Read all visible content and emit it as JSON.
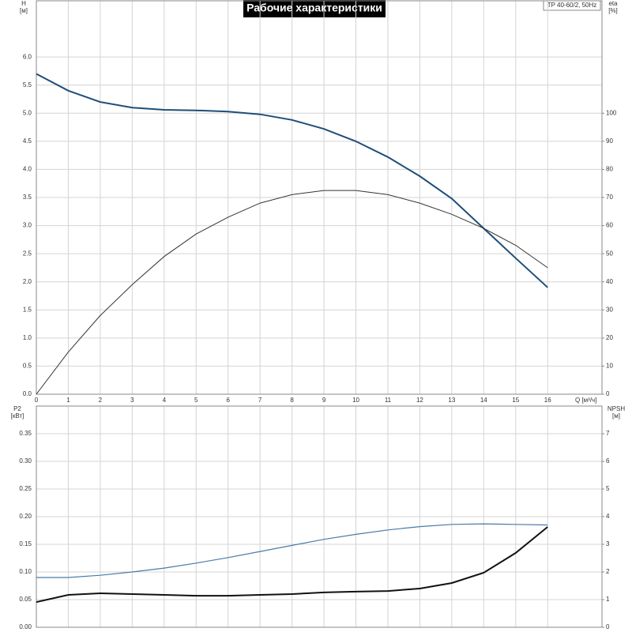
{
  "chart_data": [
    {
      "type": "line",
      "title": "Рабочие характеристики",
      "model": "TP 40-60/2, 50Hz",
      "ylabel": "H",
      "yunit": "[м]",
      "y2label": "eta",
      "y2unit": "[%]",
      "xlabel": "Q [м³/ч]",
      "x": [
        0,
        1,
        2,
        3,
        4,
        5,
        6,
        7,
        8,
        9,
        10,
        11,
        12,
        13,
        14,
        15,
        16
      ],
      "xlim": [
        0,
        17.7
      ],
      "xticks": [
        0,
        1,
        2,
        3,
        4,
        5,
        6,
        7,
        8,
        9,
        10,
        11,
        12,
        13,
        14,
        15,
        16
      ],
      "ylim": [
        0,
        7
      ],
      "yticks": [
        {
          "value": 0,
          "label": "0.0"
        },
        0.5,
        {
          "value": 1,
          "label": "1.0"
        },
        1.5,
        {
          "value": 2,
          "label": "2.0"
        },
        2.5,
        {
          "value": 3,
          "label": "3.0"
        },
        3.5,
        {
          "value": 4,
          "label": "4.0"
        },
        4.5,
        {
          "value": 5,
          "label": "5.0"
        },
        5.5,
        {
          "value": 6,
          "label": "6.0"
        }
      ],
      "y2lim": [
        0,
        140
      ],
      "y2ticks": [
        0,
        10,
        20,
        30,
        40,
        50,
        60,
        70,
        80,
        90,
        100
      ],
      "grid": true,
      "series": [
        {
          "color": "#1f4e79",
          "width": 2,
          "values": [
            5.7,
            5.4,
            5.2,
            5.1,
            5.06,
            5.05,
            5.03,
            4.98,
            4.88,
            4.72,
            4.5,
            4.22,
            3.88,
            3.48,
            2.95,
            2.42,
            1.9
          ]
        },
        {
          "color": "#333333",
          "width": 1,
          "axis": "y2",
          "values": [
            0,
            15,
            28,
            39,
            49,
            57,
            63,
            68,
            71,
            72.5,
            72.5,
            71,
            68,
            64,
            59,
            53,
            45
          ]
        }
      ]
    },
    {
      "type": "line",
      "ylabel": "P2",
      "yunit": "[кВт]",
      "y2label": "NPSH",
      "y2unit": "[м]",
      "x": [
        0,
        1,
        2,
        3,
        4,
        5,
        6,
        7,
        8,
        9,
        10,
        11,
        12,
        13,
        14,
        15,
        16
      ],
      "xlim": [
        0,
        17.7
      ],
      "xticks": [
        0,
        1,
        2,
        3,
        4,
        5,
        6,
        7,
        8,
        9,
        10,
        11,
        12,
        13,
        14,
        15,
        16
      ],
      "ylim": [
        0,
        0.4
      ],
      "yticks": [
        {
          "value": 0,
          "label": "0.00"
        },
        0.05,
        {
          "value": 0.1,
          "label": "0.10"
        },
        0.15,
        {
          "value": 0.2,
          "label": "0.20"
        },
        0.25,
        {
          "value": 0.3,
          "label": "0.30"
        },
        0.35
      ],
      "y2lim": [
        0,
        8
      ],
      "y2ticks": [
        0,
        1,
        2,
        3,
        4,
        5,
        6,
        7
      ],
      "grid": true,
      "series": [
        {
          "color": "#4a7aa8",
          "width": 1.2,
          "values": [
            0.09,
            0.09,
            0.094,
            0.1,
            0.107,
            0.116,
            0.126,
            0.137,
            0.148,
            0.159,
            0.168,
            0.176,
            0.182,
            0.186,
            0.187,
            0.186,
            0.185
          ]
        },
        {
          "color": "#111111",
          "width": 2,
          "axis": "y2",
          "values": [
            0.91,
            1.17,
            1.23,
            1.2,
            1.17,
            1.14,
            1.14,
            1.17,
            1.2,
            1.26,
            1.29,
            1.31,
            1.4,
            1.6,
            1.97,
            2.69,
            3.63
          ]
        }
      ]
    }
  ]
}
